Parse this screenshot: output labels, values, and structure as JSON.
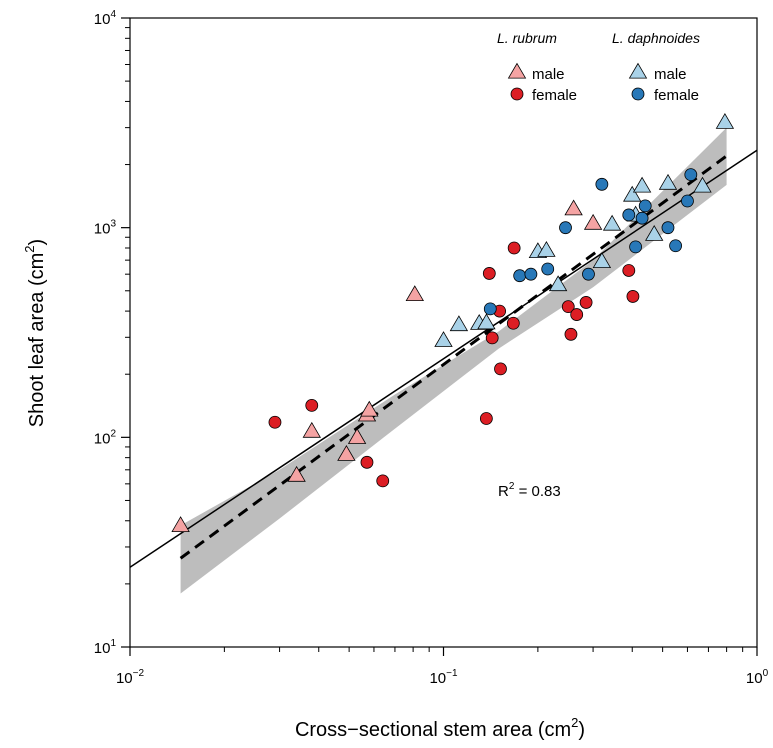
{
  "chart_data": {
    "type": "scatter",
    "xlabel": "Cross−sectional stem area (cm",
    "xlabel_sup": "2",
    "xlabel_end": ")",
    "ylabel": "Shoot leaf area (cm",
    "ylabel_sup": "2",
    "ylabel_end": ")",
    "x_scale": "log",
    "y_scale": "log",
    "xlim": [
      0.01,
      1
    ],
    "ylim": [
      10,
      10000
    ],
    "x_ticks": [
      {
        "base": "10",
        "exp": "−2"
      },
      {
        "base": "10",
        "exp": "−1"
      },
      {
        "base": "10",
        "exp": "0"
      }
    ],
    "y_ticks": [
      {
        "base": "10",
        "exp": "1"
      },
      {
        "base": "10",
        "exp": "2"
      },
      {
        "base": "10",
        "exp": "3"
      },
      {
        "base": "10",
        "exp": "4"
      }
    ],
    "grid": false,
    "legend_placement": "top-right",
    "annotation": {
      "text": "R",
      "sup": "2",
      "rest": " = 0.83"
    },
    "colors": {
      "rubrum_male_fill": "#f4a3a3",
      "rubrum_female_fill": "#dc1e24",
      "daphnoides_male_fill": "#a9d2e8",
      "daphnoides_female_fill": "#2878b8",
      "band": "#bdbdbd",
      "line": "#000000"
    },
    "legend": {
      "groups": [
        {
          "title": "L. rubrum",
          "items": [
            {
              "label": "male",
              "series": "rubrum_male"
            },
            {
              "label": "female",
              "series": "rubrum_female"
            }
          ]
        },
        {
          "title": "L. daphnoides",
          "items": [
            {
              "label": "male",
              "series": "daphnoides_male"
            },
            {
              "label": "female",
              "series": "daphnoides_female"
            }
          ]
        }
      ]
    },
    "series": [
      {
        "key": "rubrum_male",
        "marker": "triangle",
        "color": "#f4a3a3",
        "points": [
          [
            0.0145,
            38
          ],
          [
            0.034,
            66
          ],
          [
            0.038,
            107
          ],
          [
            0.049,
            83
          ],
          [
            0.053,
            100
          ],
          [
            0.057,
            128
          ],
          [
            0.058,
            135
          ],
          [
            0.081,
            480
          ],
          [
            0.26,
            1230
          ],
          [
            0.3,
            1050
          ]
        ]
      },
      {
        "key": "rubrum_female",
        "marker": "circle",
        "color": "#dc1e24",
        "points": [
          [
            0.029,
            118
          ],
          [
            0.038,
            142
          ],
          [
            0.057,
            76
          ],
          [
            0.064,
            62
          ],
          [
            0.137,
            123
          ],
          [
            0.14,
            605
          ],
          [
            0.143,
            298
          ],
          [
            0.151,
            400
          ],
          [
            0.152,
            212
          ],
          [
            0.167,
            350
          ],
          [
            0.168,
            800
          ],
          [
            0.25,
            420
          ],
          [
            0.255,
            310
          ],
          [
            0.266,
            385
          ],
          [
            0.285,
            440
          ],
          [
            0.39,
            625
          ],
          [
            0.402,
            470
          ]
        ]
      },
      {
        "key": "daphnoides_male",
        "marker": "triangle",
        "color": "#a9d2e8",
        "points": [
          [
            0.1,
            290
          ],
          [
            0.112,
            345
          ],
          [
            0.13,
            350
          ],
          [
            0.137,
            352
          ],
          [
            0.2,
            770
          ],
          [
            0.213,
            780
          ],
          [
            0.232,
            535
          ],
          [
            0.32,
            690
          ],
          [
            0.345,
            1040
          ],
          [
            0.4,
            1430
          ],
          [
            0.41,
            1150
          ],
          [
            0.43,
            1580
          ],
          [
            0.47,
            930
          ],
          [
            0.52,
            1630
          ],
          [
            0.67,
            1580
          ],
          [
            0.79,
            3180
          ]
        ]
      },
      {
        "key": "daphnoides_female",
        "marker": "circle",
        "color": "#2878b8",
        "points": [
          [
            0.141,
            410
          ],
          [
            0.175,
            590
          ],
          [
            0.19,
            600
          ],
          [
            0.215,
            635
          ],
          [
            0.245,
            1000
          ],
          [
            0.29,
            600
          ],
          [
            0.32,
            1610
          ],
          [
            0.39,
            1150
          ],
          [
            0.41,
            810
          ],
          [
            0.43,
            1110
          ],
          [
            0.44,
            1270
          ],
          [
            0.52,
            1000
          ],
          [
            0.55,
            820
          ],
          [
            0.6,
            1340
          ],
          [
            0.615,
            1790
          ]
        ]
      }
    ],
    "fit_solid": {
      "x": [
        0.01,
        1
      ],
      "y": [
        24,
        2340
      ]
    },
    "fit_dashed": {
      "x": [
        0.0145,
        0.8
      ],
      "y": [
        26.5,
        2200
      ]
    },
    "confidence_band": {
      "x": [
        0.0145,
        0.03,
        0.07,
        0.15,
        0.3,
        0.8
      ],
      "lower": [
        18,
        41,
        110,
        265,
        520,
        1600
      ],
      "upper": [
        38,
        70,
        160,
        320,
        700,
        3000
      ]
    }
  }
}
